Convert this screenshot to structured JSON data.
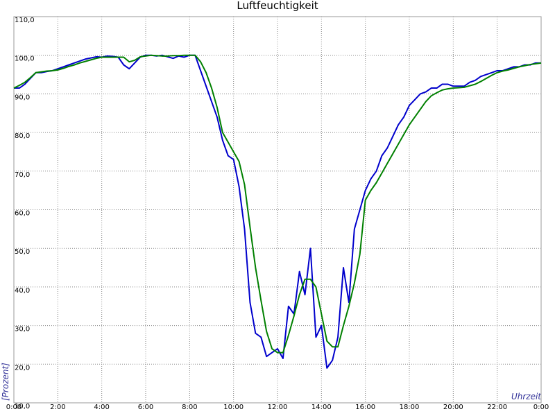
{
  "chart_data": {
    "type": "line",
    "title": "Luftfeuchtigkeit",
    "y_label": "[Prozent]",
    "x_label": "Uhrzeit",
    "xlim": [
      0,
      24
    ],
    "ylim": [
      10,
      110
    ],
    "grid": true,
    "xticks": [
      {
        "value": 0,
        "label": "0:00"
      },
      {
        "value": 2,
        "label": "2:00"
      },
      {
        "value": 4,
        "label": "4:00"
      },
      {
        "value": 6,
        "label": "6:00"
      },
      {
        "value": 8,
        "label": "8:00"
      },
      {
        "value": 10,
        "label": "10:00"
      },
      {
        "value": 12,
        "label": "12:00"
      },
      {
        "value": 14,
        "label": "14:00"
      },
      {
        "value": 16,
        "label": "16:00"
      },
      {
        "value": 18,
        "label": "18:00"
      },
      {
        "value": 20,
        "label": "20:00"
      },
      {
        "value": 22,
        "label": "22:00"
      },
      {
        "value": 24,
        "label": "0:00"
      }
    ],
    "yticks": [
      {
        "value": 10,
        "label": "10,0"
      },
      {
        "value": 20,
        "label": "20,0"
      },
      {
        "value": 30,
        "label": "30,0"
      },
      {
        "value": 40,
        "label": "40,0"
      },
      {
        "value": 50,
        "label": "50,0"
      },
      {
        "value": 60,
        "label": "60,0"
      },
      {
        "value": 70,
        "label": "70,0"
      },
      {
        "value": 80,
        "label": "80,0"
      },
      {
        "value": 90,
        "label": "90,0"
      },
      {
        "value": 100,
        "label": "100,0"
      },
      {
        "value": 110,
        "label": "110,0"
      }
    ],
    "x": [
      0,
      0.25,
      0.5,
      0.75,
      1,
      1.25,
      1.5,
      1.75,
      2,
      2.25,
      2.5,
      2.75,
      3,
      3.25,
      3.5,
      3.75,
      4,
      4.25,
      4.5,
      4.75,
      5,
      5.25,
      5.5,
      5.75,
      6,
      6.25,
      6.5,
      6.75,
      7,
      7.25,
      7.5,
      7.75,
      8,
      8.25,
      8.5,
      8.75,
      9,
      9.25,
      9.5,
      9.75,
      10,
      10.25,
      10.5,
      10.75,
      11,
      11.25,
      11.5,
      11.75,
      12,
      12.25,
      12.5,
      12.75,
      13,
      13.25,
      13.5,
      13.75,
      14,
      14.25,
      14.5,
      14.75,
      15,
      15.25,
      15.5,
      15.75,
      16,
      16.25,
      16.5,
      16.75,
      17,
      17.25,
      17.5,
      17.75,
      18,
      18.25,
      18.5,
      18.75,
      19,
      19.25,
      19.5,
      19.75,
      20,
      20.25,
      20.5,
      20.75,
      21,
      21.25,
      21.5,
      21.75,
      22,
      22.25,
      22.5,
      22.75,
      23,
      23.25,
      23.5,
      23.75,
      24
    ],
    "series": [
      {
        "color": "#0000cc",
        "values": [
          91.5,
          91.5,
          92.5,
          94,
          95.5,
          95.5,
          95.8,
          96,
          96.5,
          97,
          97.5,
          98,
          98.5,
          99,
          99.3,
          99.6,
          99.5,
          99.8,
          99.7,
          99.5,
          97.5,
          96.5,
          98,
          99.5,
          100,
          100,
          99.8,
          100,
          99.6,
          99.2,
          99.8,
          99.5,
          100,
          100,
          96,
          92,
          88,
          84,
          78,
          74,
          73,
          66,
          55,
          36,
          28,
          27,
          22,
          23,
          24,
          21.5,
          35,
          33,
          44,
          38,
          50,
          27,
          30,
          19,
          21,
          27,
          45,
          36,
          55,
          60,
          65,
          68,
          70,
          74,
          76,
          79,
          82,
          84,
          87,
          88.5,
          90,
          90.5,
          91.5,
          91.5,
          92.5,
          92.5,
          92,
          92,
          92,
          93,
          93.5,
          94.5,
          95,
          95.5,
          96,
          96,
          96.5,
          97,
          97,
          97.5,
          97.5,
          98,
          98
        ]
      },
      {
        "color": "#008000",
        "values": [
          91.5,
          92.2,
          93,
          94.2,
          95.5,
          95.7,
          95.9,
          96,
          96.2,
          96.6,
          97.1,
          97.5,
          98,
          98.4,
          98.8,
          99.2,
          99.5,
          99.5,
          99.5,
          99.5,
          99.5,
          98.3,
          98.7,
          99.6,
          99.8,
          100,
          99.9,
          99.8,
          99.8,
          99.9,
          99.9,
          100,
          100,
          100,
          98.3,
          95.5,
          91.5,
          86.5,
          80,
          77.5,
          75,
          72.5,
          66.5,
          55.5,
          45,
          36.5,
          28.5,
          24,
          23,
          23,
          27.5,
          32.5,
          38,
          42,
          42,
          40,
          33,
          26,
          24.5,
          24.5,
          30,
          35,
          41,
          48.5,
          62.5,
          65,
          67,
          69.5,
          72,
          74.5,
          77,
          79.5,
          82,
          84,
          86,
          88,
          89.5,
          90.3,
          91,
          91.3,
          91.5,
          91.6,
          91.7,
          92.1,
          92.5,
          93.2,
          94,
          94.8,
          95.5,
          95.9,
          96.2,
          96.6,
          97,
          97.3,
          97.6,
          97.8,
          98
        ]
      }
    ]
  }
}
